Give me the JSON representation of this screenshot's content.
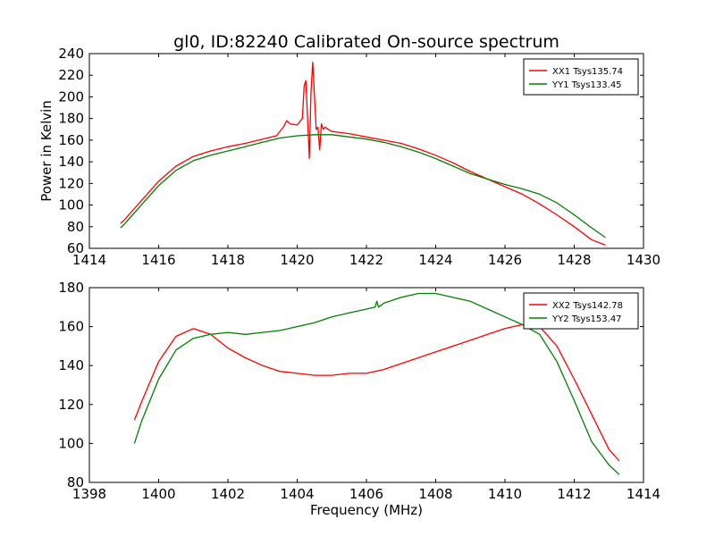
{
  "figure": {
    "title": "gl0, ID:82240 Calibrated On-source spectrum",
    "xlabel": "Frequency (MHz)",
    "ylabel": "Power in Kelvin"
  },
  "colors": {
    "xx": "#ff0000",
    "yy": "#007f00",
    "axes": "#000000",
    "background": "#ffffff"
  },
  "chart_data": [
    {
      "type": "line",
      "title": "gl0, ID:82240 Calibrated On-source spectrum",
      "xlabel": "",
      "ylabel": "Power in Kelvin",
      "xlim": [
        1414,
        1430
      ],
      "ylim": [
        60,
        240
      ],
      "xticks": [
        1414,
        1416,
        1418,
        1420,
        1422,
        1424,
        1426,
        1428,
        1430
      ],
      "yticks": [
        60,
        80,
        100,
        120,
        140,
        160,
        180,
        200,
        220,
        240
      ],
      "legend": "top-right",
      "grid": false,
      "series": [
        {
          "name": "XX1 Tsys135.74",
          "color": "#ff0000",
          "x": [
            1414.9,
            1415.0,
            1415.5,
            1416.0,
            1416.5,
            1417.0,
            1417.5,
            1418.0,
            1418.5,
            1419.0,
            1419.4,
            1419.6,
            1419.7,
            1419.8,
            1420.0,
            1420.15,
            1420.2,
            1420.25,
            1420.3,
            1420.35,
            1420.4,
            1420.45,
            1420.5,
            1420.55,
            1420.6,
            1420.65,
            1420.7,
            1420.75,
            1420.8,
            1421.0,
            1421.5,
            1422.0,
            1422.5,
            1423.0,
            1423.5,
            1424.0,
            1424.5,
            1425.0,
            1425.5,
            1426.0,
            1426.5,
            1427.0,
            1427.5,
            1428.0,
            1428.5,
            1428.9
          ],
          "y": [
            83,
            86,
            104,
            122,
            136,
            145,
            150,
            154,
            157,
            161,
            164,
            172,
            178,
            175,
            174,
            180,
            210,
            215,
            180,
            143,
            205,
            232,
            200,
            170,
            172,
            151,
            175,
            170,
            172,
            168,
            166,
            163,
            160,
            157,
            152,
            146,
            139,
            131,
            124,
            117,
            110,
            101,
            91,
            80,
            68,
            63
          ]
        },
        {
          "name": "YY1 Tsys133.45",
          "color": "#007f00",
          "x": [
            1414.9,
            1415.0,
            1415.5,
            1416.0,
            1416.5,
            1417.0,
            1417.5,
            1418.0,
            1418.5,
            1419.0,
            1419.5,
            1420.0,
            1420.5,
            1421.0,
            1421.5,
            1422.0,
            1422.5,
            1423.0,
            1423.5,
            1424.0,
            1424.5,
            1425.0,
            1425.5,
            1426.0,
            1426.5,
            1427.0,
            1427.5,
            1428.0,
            1428.5,
            1428.9
          ],
          "y": [
            79,
            82,
            100,
            118,
            132,
            141,
            146,
            150,
            154,
            158,
            162,
            164,
            165,
            165,
            163,
            161,
            158,
            154,
            149,
            143,
            136,
            129,
            124,
            119,
            115,
            110,
            102,
            91,
            79,
            70
          ]
        }
      ]
    },
    {
      "type": "line",
      "title": "",
      "xlabel": "Frequency (MHz)",
      "ylabel": "",
      "xlim": [
        1398,
        1414
      ],
      "ylim": [
        80,
        180
      ],
      "xticks": [
        1398,
        1400,
        1402,
        1404,
        1406,
        1408,
        1410,
        1412,
        1414
      ],
      "yticks": [
        80,
        100,
        120,
        140,
        160,
        180
      ],
      "legend": "top-right",
      "grid": false,
      "series": [
        {
          "name": "XX2 Tsys142.78",
          "color": "#ff0000",
          "x": [
            1399.3,
            1399.5,
            1400.0,
            1400.5,
            1401.0,
            1401.5,
            1402.0,
            1402.5,
            1403.0,
            1403.5,
            1404.0,
            1404.5,
            1405.0,
            1405.5,
            1406.0,
            1406.5,
            1407.0,
            1407.5,
            1408.0,
            1408.5,
            1409.0,
            1409.5,
            1410.0,
            1410.5,
            1411.0,
            1411.5,
            1412.0,
            1412.5,
            1413.0,
            1413.3
          ],
          "y": [
            112,
            121,
            142,
            155,
            159,
            156,
            149,
            144,
            140,
            137,
            136,
            135,
            135,
            136,
            136,
            138,
            141,
            144,
            147,
            150,
            153,
            156,
            159,
            161,
            160,
            150,
            133,
            115,
            97,
            91
          ]
        },
        {
          "name": "YY2 Tsys153.47",
          "color": "#007f00",
          "x": [
            1399.3,
            1399.5,
            1400.0,
            1400.5,
            1401.0,
            1401.5,
            1402.0,
            1402.5,
            1403.0,
            1403.5,
            1404.0,
            1404.5,
            1405.0,
            1405.5,
            1406.0,
            1406.25,
            1406.3,
            1406.35,
            1406.5,
            1407.0,
            1407.5,
            1408.0,
            1408.5,
            1409.0,
            1409.5,
            1410.0,
            1410.5,
            1411.0,
            1411.5,
            1412.0,
            1412.5,
            1413.0,
            1413.3
          ],
          "y": [
            100,
            111,
            133,
            148,
            154,
            156,
            157,
            156,
            157,
            158,
            160,
            162,
            165,
            167,
            169,
            170,
            173,
            170,
            172,
            175,
            177,
            177,
            175,
            173,
            169,
            165,
            161,
            156,
            142,
            122,
            101,
            89,
            84
          ]
        }
      ]
    }
  ]
}
